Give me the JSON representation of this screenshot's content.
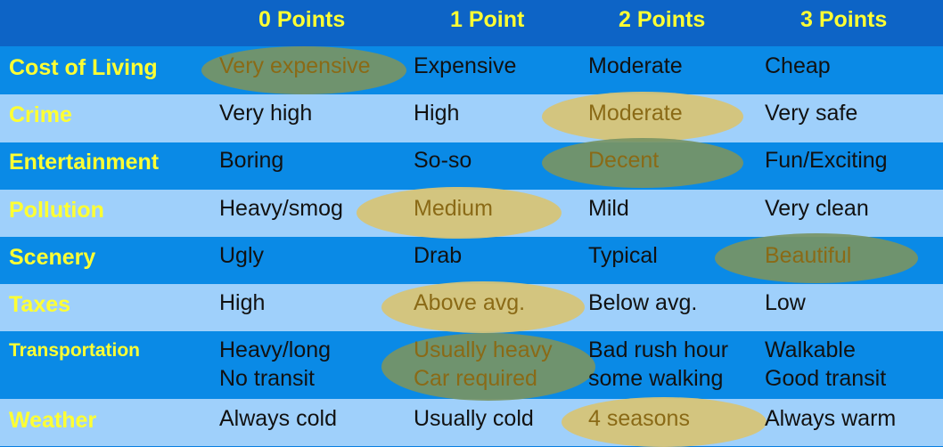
{
  "header": {
    "columns": [
      "0 Points",
      "1 Point",
      "2 Points",
      "3 Points"
    ]
  },
  "rows": [
    {
      "label": "Cost of Living",
      "cells": [
        "Very expensive",
        "Expensive",
        "Moderate",
        "Cheap"
      ],
      "selected": 0,
      "highlight_color": "olive"
    },
    {
      "label": "Crime",
      "cells": [
        "Very high",
        "High",
        "Moderate",
        "Very safe"
      ],
      "selected": 2,
      "highlight_color": "tan"
    },
    {
      "label": "Entertainment",
      "cells": [
        "Boring",
        "So-so",
        "Decent",
        "Fun/Exciting"
      ],
      "selected": 2,
      "highlight_color": "olive"
    },
    {
      "label": "Pollution",
      "cells": [
        "Heavy/smog",
        "Medium",
        "Mild",
        "Very clean"
      ],
      "selected": 1,
      "highlight_color": "tan"
    },
    {
      "label": "Scenery",
      "cells": [
        "Ugly",
        "Drab",
        "Typical",
        "Beautiful"
      ],
      "selected": 3,
      "highlight_color": "olive"
    },
    {
      "label": "Taxes",
      "cells": [
        "High",
        "Above avg.",
        "Below avg.",
        "Low"
      ],
      "selected": 1,
      "highlight_color": "tan"
    },
    {
      "label": "Transportation",
      "cells": [
        [
          "Heavy/long",
          "No transit"
        ],
        [
          "Usually heavy",
          "Car required"
        ],
        [
          "Bad rush hour",
          "some walking"
        ],
        [
          "Walkable",
          "Good transit"
        ]
      ],
      "selected": 1,
      "highlight_color": "olive"
    },
    {
      "label": "Weather",
      "cells": [
        "Always cold",
        "Usually cold",
        "4 seasons",
        "Always warm"
      ],
      "selected": 2,
      "highlight_color": "tan"
    }
  ],
  "colors": {
    "header_bg": "#0d64c6",
    "row_dark": "#0a8ae6",
    "row_light": "#9fd0fb",
    "label_text": "#ffff33",
    "highlight_olive": "#789464",
    "highlight_tan": "#d6c478"
  }
}
